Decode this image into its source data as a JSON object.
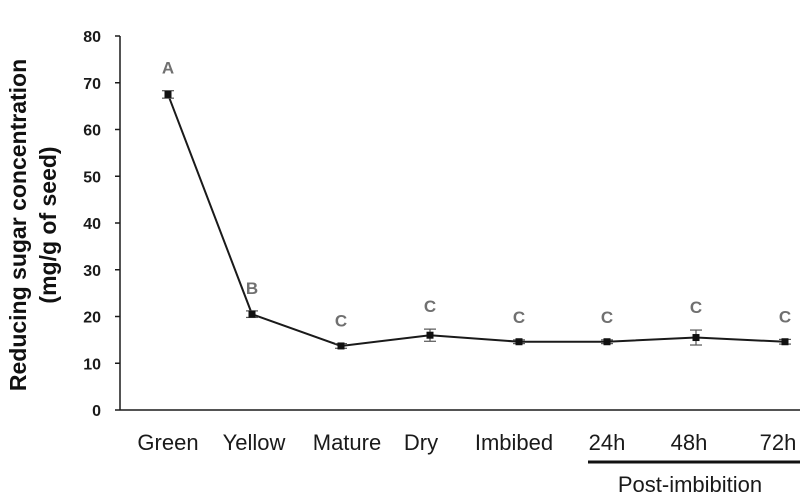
{
  "chart_data": {
    "type": "line",
    "categories": [
      "Green",
      "Yellow",
      "Mature",
      "Dry",
      "Imbibed",
      "24h",
      "48h",
      "72h"
    ],
    "series": [
      {
        "values": [
          67.5,
          20.5,
          13.7,
          16.0,
          14.6,
          14.6,
          15.5,
          14.6
        ],
        "error": [
          0.8,
          0.7,
          0.5,
          1.3,
          0.4,
          0.4,
          1.6,
          0.5
        ],
        "significance": [
          "A",
          "B",
          "C",
          "C",
          "C",
          "C",
          "C",
          "C"
        ]
      }
    ],
    "ylabel_lines": [
      "Reducing sugar concentration",
      "(mg/g of seed)"
    ],
    "yticks": [
      0,
      10,
      20,
      30,
      40,
      50,
      60,
      70,
      80
    ],
    "ylim": [
      0,
      80
    ],
    "group": {
      "label": "Post-imbibition",
      "categories": [
        "24h",
        "48h",
        "72h"
      ]
    },
    "grid": false,
    "colors": {
      "line": "#1a1a1a",
      "marker": "#111111",
      "letters": "#707070",
      "error_bars": "#555555"
    }
  }
}
